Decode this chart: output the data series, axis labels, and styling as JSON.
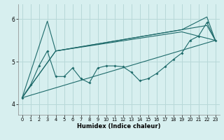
{
  "xlabel": "Humidex (Indice chaleur)",
  "bg_color": "#d7efef",
  "grid_color": "#b8d8d8",
  "line_color": "#1e6b6b",
  "xlim": [
    -0.5,
    23.5
  ],
  "ylim": [
    3.75,
    6.35
  ],
  "yticks": [
    4,
    5,
    6
  ],
  "xticks": [
    0,
    1,
    2,
    3,
    4,
    5,
    6,
    7,
    8,
    9,
    10,
    11,
    12,
    13,
    14,
    15,
    16,
    17,
    18,
    19,
    20,
    21,
    22,
    23
  ],
  "line1_x": [
    0,
    1,
    2,
    3,
    4,
    5,
    6,
    7,
    8,
    9,
    10,
    11,
    12,
    13,
    14,
    15,
    16,
    17,
    18,
    19,
    20,
    21,
    22,
    23
  ],
  "line1_y": [
    4.15,
    4.45,
    4.9,
    5.25,
    4.65,
    4.65,
    4.85,
    4.6,
    4.5,
    4.85,
    4.9,
    4.9,
    4.88,
    4.75,
    4.55,
    4.6,
    4.72,
    4.88,
    5.05,
    5.2,
    5.5,
    5.6,
    5.92,
    5.5
  ],
  "line2_x": [
    0,
    3,
    4,
    19,
    22,
    23
  ],
  "line2_y": [
    4.15,
    5.95,
    5.25,
    5.75,
    6.05,
    5.5
  ],
  "line3_x": [
    0,
    4,
    22,
    23
  ],
  "line3_y": [
    4.15,
    5.25,
    5.85,
    5.5
  ],
  "line4_x": [
    0,
    23
  ],
  "line4_y": [
    4.15,
    5.5
  ],
  "line5_x": [
    0,
    4,
    19,
    23
  ],
  "line5_y": [
    4.15,
    5.25,
    5.7,
    5.5
  ]
}
